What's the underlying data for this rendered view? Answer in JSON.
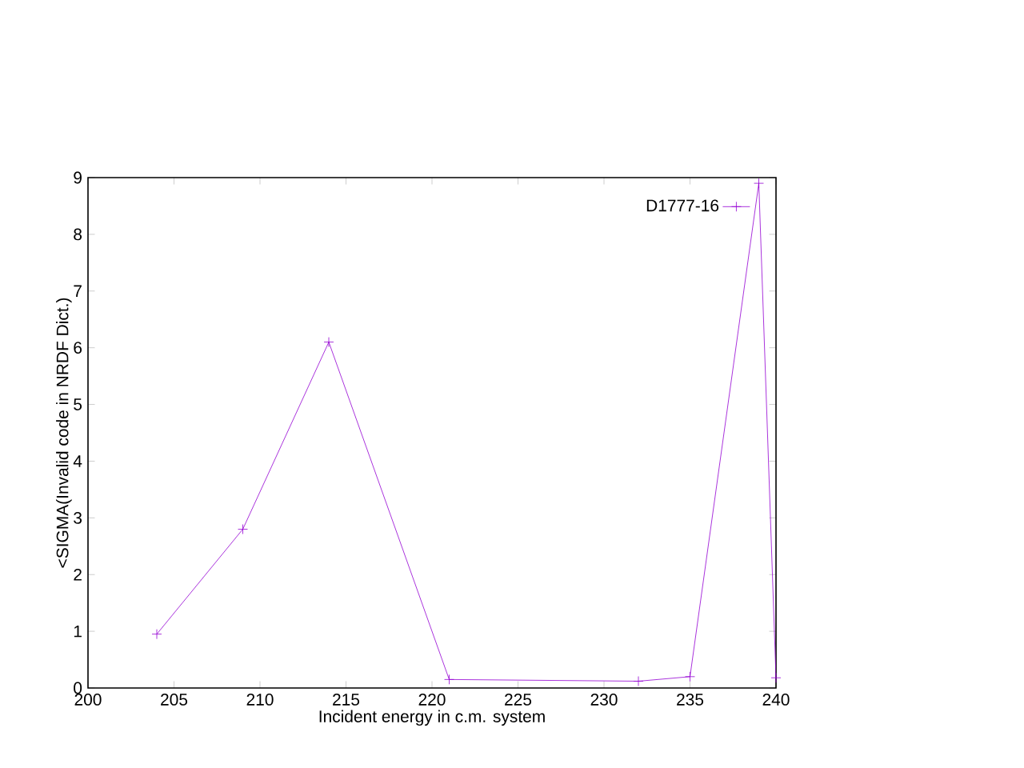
{
  "chart_data": {
    "type": "line",
    "xlabel": "Incident energy in c.m. system",
    "ylabel": "<SIGMA(Invalid code in NRDF Dict.)",
    "x": [
      204,
      209,
      214,
      221,
      232,
      235,
      239,
      240
    ],
    "series": [
      {
        "name": "D1777-16",
        "color": "#9400d3",
        "values": [
          0.95,
          2.8,
          6.1,
          0.15,
          0.12,
          0.2,
          8.9,
          0.18
        ]
      }
    ],
    "xlim": [
      200,
      240
    ],
    "xticks": [
      200,
      205,
      210,
      215,
      220,
      225,
      230,
      235,
      240
    ],
    "ylim": [
      0,
      9
    ],
    "yticks": [
      0,
      1,
      2,
      3,
      4,
      5,
      6,
      7,
      8,
      9
    ],
    "legend": "top right",
    "marker": "cross",
    "line_style": "solid",
    "grid": false
  }
}
